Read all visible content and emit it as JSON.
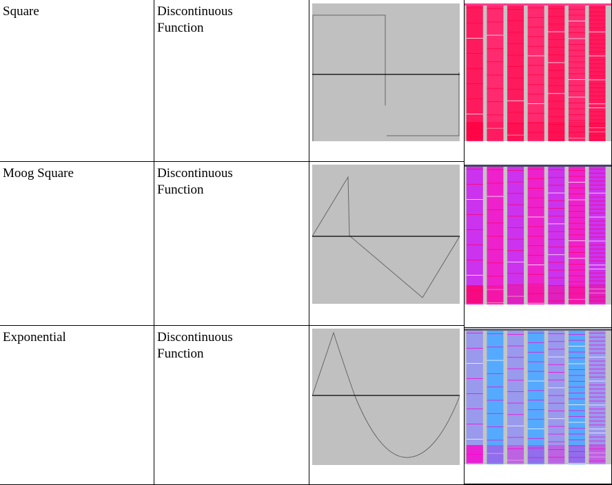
{
  "rows": [
    {
      "name": "Square",
      "type": "Discontinuous Function",
      "waveform": "square",
      "spectrum_palette": [
        "#ff1a5e",
        "#ff2a70",
        "#ff0040",
        "#ffffff"
      ],
      "spectrum_top_color": "#ff3c8c"
    },
    {
      "name": "Moog Square",
      "type": "Discontinuous Function",
      "waveform": "moog-square",
      "spectrum_palette": [
        "#cc33ee",
        "#ee22cc",
        "#ff0066",
        "#ffffff"
      ],
      "spectrum_top_color": "#444466"
    },
    {
      "name": "Exponential",
      "type": "Discontinuous Function",
      "waveform": "exponential",
      "spectrum_palette": [
        "#9999ee",
        "#55aaff",
        "#ff00cc",
        "#ffffff"
      ],
      "spectrum_top_color": "#666677"
    }
  ],
  "colors": {
    "plot_background": "#c0c0c0",
    "plot_line": "#555555",
    "zero_line": "#000000"
  }
}
